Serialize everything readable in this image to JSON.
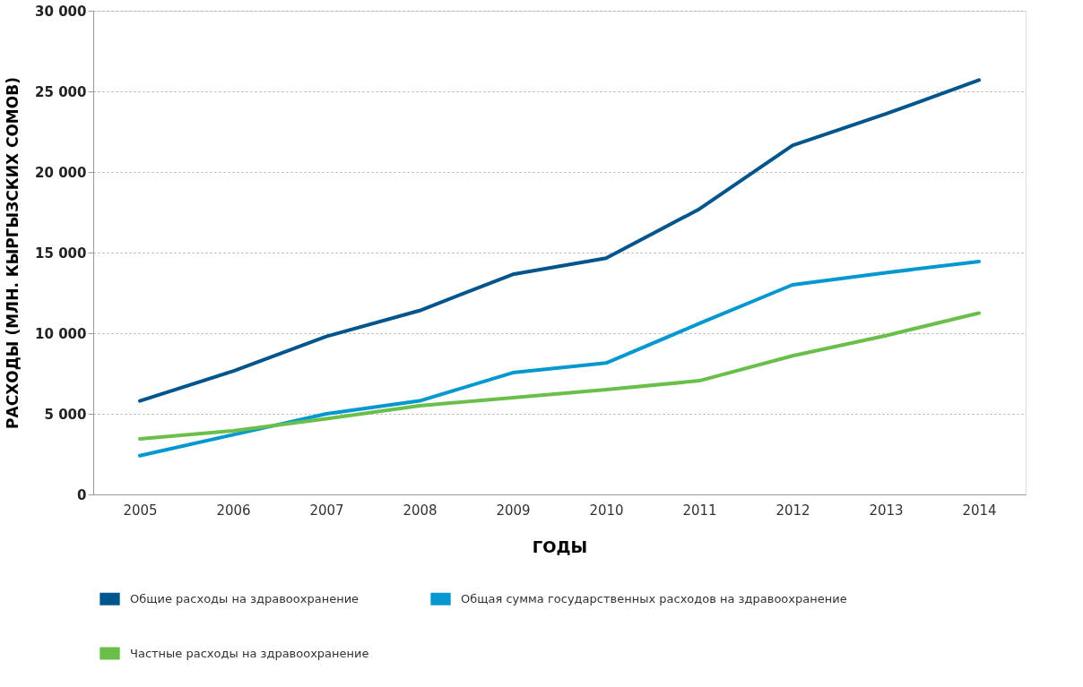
{
  "chart_data": {
    "type": "line",
    "xlabel": "ГОДЫ",
    "ylabel": "РАСХОДЫ (МЛН. КЫРГЫЗСКИХ СОМОВ)",
    "categories": [
      "2005",
      "2006",
      "2007",
      "2008",
      "2009",
      "2010",
      "2011",
      "2012",
      "2013",
      "2014"
    ],
    "series": [
      {
        "name": "Общие расходы на здравоохранение",
        "color": "#00568c",
        "values": [
          5800,
          7650,
          9800,
          11400,
          13650,
          14650,
          17700,
          21650,
          23600,
          25700
        ]
      },
      {
        "name": "Общая сумма государственных расходов на здравоохранение",
        "color": "#0598d0",
        "values": [
          2400,
          3700,
          5000,
          5800,
          7550,
          8150,
          10600,
          13000,
          13750,
          14450
        ]
      },
      {
        "name": "Частные расходы на здравоохранение",
        "color": "#6abf4b",
        "values": [
          3450,
          3950,
          4700,
          5500,
          6000,
          6500,
          7050,
          8600,
          9850,
          11250
        ]
      }
    ],
    "ylim": [
      0,
      30000
    ],
    "yticks": [
      {
        "value": 0,
        "label": "0"
      },
      {
        "value": 5000,
        "label": "5 000"
      },
      {
        "value": 10000,
        "label": "10 000"
      },
      {
        "value": 15000,
        "label": "15 000"
      },
      {
        "value": 20000,
        "label": "20 000"
      },
      {
        "value": 25000,
        "label": "25 000"
      },
      {
        "value": 30000,
        "label": "30 000"
      }
    ],
    "grid": "y",
    "legend": "bottom",
    "line_style": "solid"
  }
}
